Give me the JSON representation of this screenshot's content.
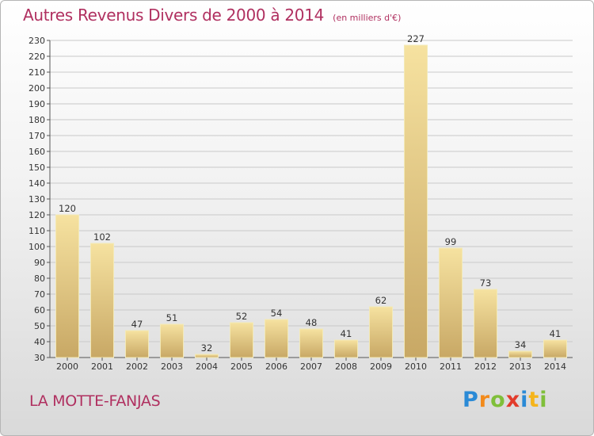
{
  "header": {
    "title": "Autres Revenus Divers de 2000 à 2014",
    "unit": "(en milliers d'€)"
  },
  "footer": {
    "commune": "LA MOTTE-FANJAS",
    "brand": "Proxiti"
  },
  "colors": {
    "title": "#b03060",
    "bar_light": "#f6e2a0",
    "bar_dark": "#c8a865",
    "grid": "#c9c9c9"
  },
  "chart_data": {
    "type": "bar",
    "title": "Autres Revenus Divers de 2000 à 2014",
    "subtitle": "(en milliers d'€)",
    "categories": [
      "2000",
      "2001",
      "2002",
      "2003",
      "2004",
      "2005",
      "2006",
      "2007",
      "2008",
      "2009",
      "2010",
      "2011",
      "2012",
      "2013",
      "2014"
    ],
    "values": [
      120,
      102,
      47,
      51,
      32,
      52,
      54,
      48,
      41,
      62,
      227,
      99,
      73,
      34,
      41
    ],
    "ylim": [
      30,
      230
    ],
    "yticks": [
      30,
      40,
      50,
      60,
      70,
      80,
      90,
      100,
      110,
      120,
      130,
      140,
      150,
      160,
      170,
      180,
      190,
      200,
      210,
      220,
      230
    ],
    "grid": true,
    "legend": "none"
  }
}
